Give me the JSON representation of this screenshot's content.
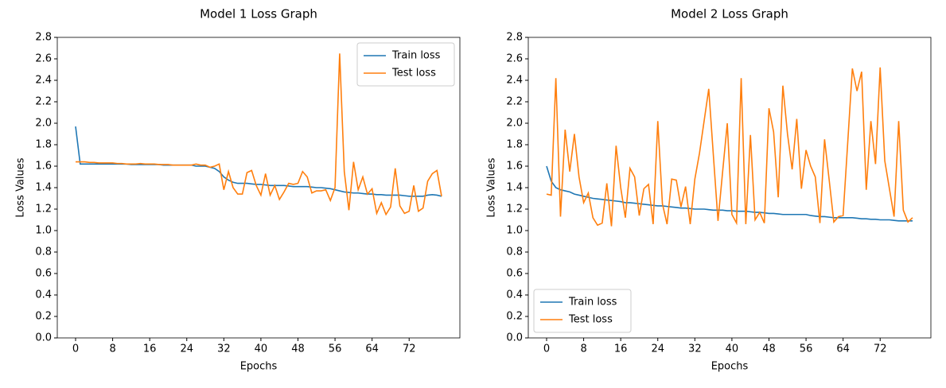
{
  "chart_data": [
    {
      "type": "line",
      "title": "Model 1 Loss Graph",
      "x_label": "Epochs",
      "y_label": "Loss Values",
      "legend": "upper right",
      "x": [
        0,
        1,
        2,
        3,
        4,
        5,
        6,
        7,
        8,
        9,
        10,
        11,
        12,
        13,
        14,
        15,
        16,
        17,
        18,
        19,
        20,
        21,
        22,
        23,
        24,
        25,
        26,
        27,
        28,
        29,
        30,
        31,
        32,
        33,
        34,
        35,
        36,
        37,
        38,
        39,
        40,
        41,
        42,
        43,
        44,
        45,
        46,
        47,
        48,
        49,
        50,
        51,
        52,
        53,
        54,
        55,
        56,
        57,
        58,
        59,
        60,
        61,
        62,
        63,
        64,
        65,
        66,
        67,
        68,
        69,
        70,
        71,
        72,
        73,
        74,
        75,
        76,
        77,
        78,
        79
      ],
      "xlim": [
        -3.95,
        82.95
      ],
      "xticks": [
        0,
        8,
        16,
        24,
        32,
        40,
        48,
        56,
        64,
        72
      ],
      "ylim": [
        0,
        2.8
      ],
      "yticks": [
        {
          "value": 0,
          "label": "0.0"
        },
        0.2,
        0.4,
        0.6,
        0.8,
        {
          "value": 1,
          "label": "1.0"
        },
        1.2,
        1.4,
        1.6,
        1.8,
        {
          "value": 2,
          "label": "2.0"
        },
        2.2,
        2.4,
        2.6,
        2.8
      ],
      "series": [
        {
          "name": "Train loss",
          "color": "#1f77b4",
          "values": [
            1.97,
            1.62,
            1.62,
            1.62,
            1.62,
            1.62,
            1.62,
            1.62,
            1.62,
            1.62,
            1.62,
            1.62,
            1.615,
            1.615,
            1.615,
            1.615,
            1.615,
            1.615,
            1.615,
            1.61,
            1.61,
            1.61,
            1.61,
            1.61,
            1.61,
            1.61,
            1.6,
            1.6,
            1.6,
            1.59,
            1.58,
            1.55,
            1.5,
            1.47,
            1.45,
            1.44,
            1.44,
            1.44,
            1.435,
            1.43,
            1.43,
            1.425,
            1.42,
            1.42,
            1.42,
            1.42,
            1.415,
            1.41,
            1.41,
            1.41,
            1.41,
            1.405,
            1.4,
            1.4,
            1.395,
            1.39,
            1.38,
            1.37,
            1.36,
            1.355,
            1.35,
            1.35,
            1.345,
            1.34,
            1.34,
            1.335,
            1.335,
            1.33,
            1.33,
            1.33,
            1.33,
            1.325,
            1.32,
            1.32,
            1.32,
            1.32,
            1.33,
            1.335,
            1.33,
            1.32
          ]
        },
        {
          "name": "Test loss",
          "color": "#ff7f0e",
          "values": [
            1.64,
            1.64,
            1.64,
            1.635,
            1.635,
            1.63,
            1.63,
            1.63,
            1.63,
            1.625,
            1.625,
            1.62,
            1.62,
            1.62,
            1.625,
            1.62,
            1.62,
            1.62,
            1.615,
            1.615,
            1.615,
            1.61,
            1.61,
            1.61,
            1.61,
            1.61,
            1.62,
            1.61,
            1.61,
            1.59,
            1.6,
            1.62,
            1.38,
            1.55,
            1.4,
            1.34,
            1.34,
            1.54,
            1.56,
            1.42,
            1.33,
            1.53,
            1.33,
            1.42,
            1.29,
            1.36,
            1.44,
            1.43,
            1.44,
            1.55,
            1.5,
            1.35,
            1.37,
            1.37,
            1.38,
            1.28,
            1.4,
            2.65,
            1.55,
            1.19,
            1.64,
            1.38,
            1.5,
            1.34,
            1.39,
            1.16,
            1.26,
            1.15,
            1.22,
            1.58,
            1.23,
            1.16,
            1.18,
            1.42,
            1.18,
            1.21,
            1.46,
            1.53,
            1.56,
            1.32
          ]
        }
      ]
    },
    {
      "type": "line",
      "title": "Model 2 Loss Graph",
      "x_label": "Epochs",
      "y_label": "Loss Values",
      "legend": "lower left",
      "x": [
        0,
        1,
        2,
        3,
        4,
        5,
        6,
        7,
        8,
        9,
        10,
        11,
        12,
        13,
        14,
        15,
        16,
        17,
        18,
        19,
        20,
        21,
        22,
        23,
        24,
        25,
        26,
        27,
        28,
        29,
        30,
        31,
        32,
        33,
        34,
        35,
        36,
        37,
        38,
        39,
        40,
        41,
        42,
        43,
        44,
        45,
        46,
        47,
        48,
        49,
        50,
        51,
        52,
        53,
        54,
        55,
        56,
        57,
        58,
        59,
        60,
        61,
        62,
        63,
        64,
        65,
        66,
        67,
        68,
        69,
        70,
        71,
        72,
        73,
        74,
        75,
        76,
        77,
        78,
        79
      ],
      "xlim": [
        -3.95,
        82.95
      ],
      "xticks": [
        0,
        8,
        16,
        24,
        32,
        40,
        48,
        56,
        64,
        72
      ],
      "ylim": [
        0,
        2.8
      ],
      "yticks": [
        {
          "value": 0,
          "label": "0.0"
        },
        0.2,
        0.4,
        0.6,
        0.8,
        {
          "value": 1,
          "label": "1.0"
        },
        1.2,
        1.4,
        1.6,
        1.8,
        {
          "value": 2,
          "label": "2.0"
        },
        2.2,
        2.4,
        2.6,
        2.8
      ],
      "series": [
        {
          "name": "Train loss",
          "color": "#1f77b4",
          "values": [
            1.6,
            1.46,
            1.4,
            1.38,
            1.37,
            1.36,
            1.34,
            1.33,
            1.32,
            1.31,
            1.3,
            1.295,
            1.29,
            1.285,
            1.28,
            1.275,
            1.27,
            1.26,
            1.26,
            1.255,
            1.25,
            1.245,
            1.24,
            1.235,
            1.23,
            1.23,
            1.225,
            1.22,
            1.215,
            1.21,
            1.21,
            1.205,
            1.2,
            1.2,
            1.2,
            1.195,
            1.19,
            1.19,
            1.19,
            1.185,
            1.185,
            1.18,
            1.18,
            1.18,
            1.175,
            1.17,
            1.17,
            1.165,
            1.16,
            1.16,
            1.155,
            1.15,
            1.15,
            1.15,
            1.15,
            1.15,
            1.15,
            1.14,
            1.135,
            1.13,
            1.13,
            1.125,
            1.12,
            1.12,
            1.12,
            1.12,
            1.12,
            1.115,
            1.11,
            1.11,
            1.105,
            1.105,
            1.1,
            1.1,
            1.1,
            1.095,
            1.09,
            1.09,
            1.09,
            1.09
          ]
        },
        {
          "name": "Test loss",
          "color": "#ff7f0e",
          "values": [
            1.34,
            1.33,
            2.42,
            1.13,
            1.94,
            1.55,
            1.9,
            1.5,
            1.26,
            1.35,
            1.12,
            1.05,
            1.07,
            1.44,
            1.04,
            1.79,
            1.4,
            1.12,
            1.58,
            1.5,
            1.14,
            1.39,
            1.43,
            1.06,
            2.02,
            1.25,
            1.06,
            1.48,
            1.47,
            1.22,
            1.41,
            1.06,
            1.48,
            1.72,
            2.02,
            2.32,
            1.7,
            1.09,
            1.55,
            2.0,
            1.15,
            1.07,
            2.42,
            1.06,
            1.89,
            1.1,
            1.17,
            1.07,
            2.14,
            1.92,
            1.31,
            2.35,
            1.9,
            1.57,
            2.04,
            1.39,
            1.75,
            1.6,
            1.5,
            1.07,
            1.85,
            1.47,
            1.08,
            1.13,
            1.14,
            1.82,
            2.51,
            2.3,
            2.48,
            1.38,
            2.02,
            1.62,
            2.52,
            1.65,
            1.39,
            1.13,
            2.02,
            1.19,
            1.08,
            1.12
          ]
        }
      ]
    }
  ]
}
